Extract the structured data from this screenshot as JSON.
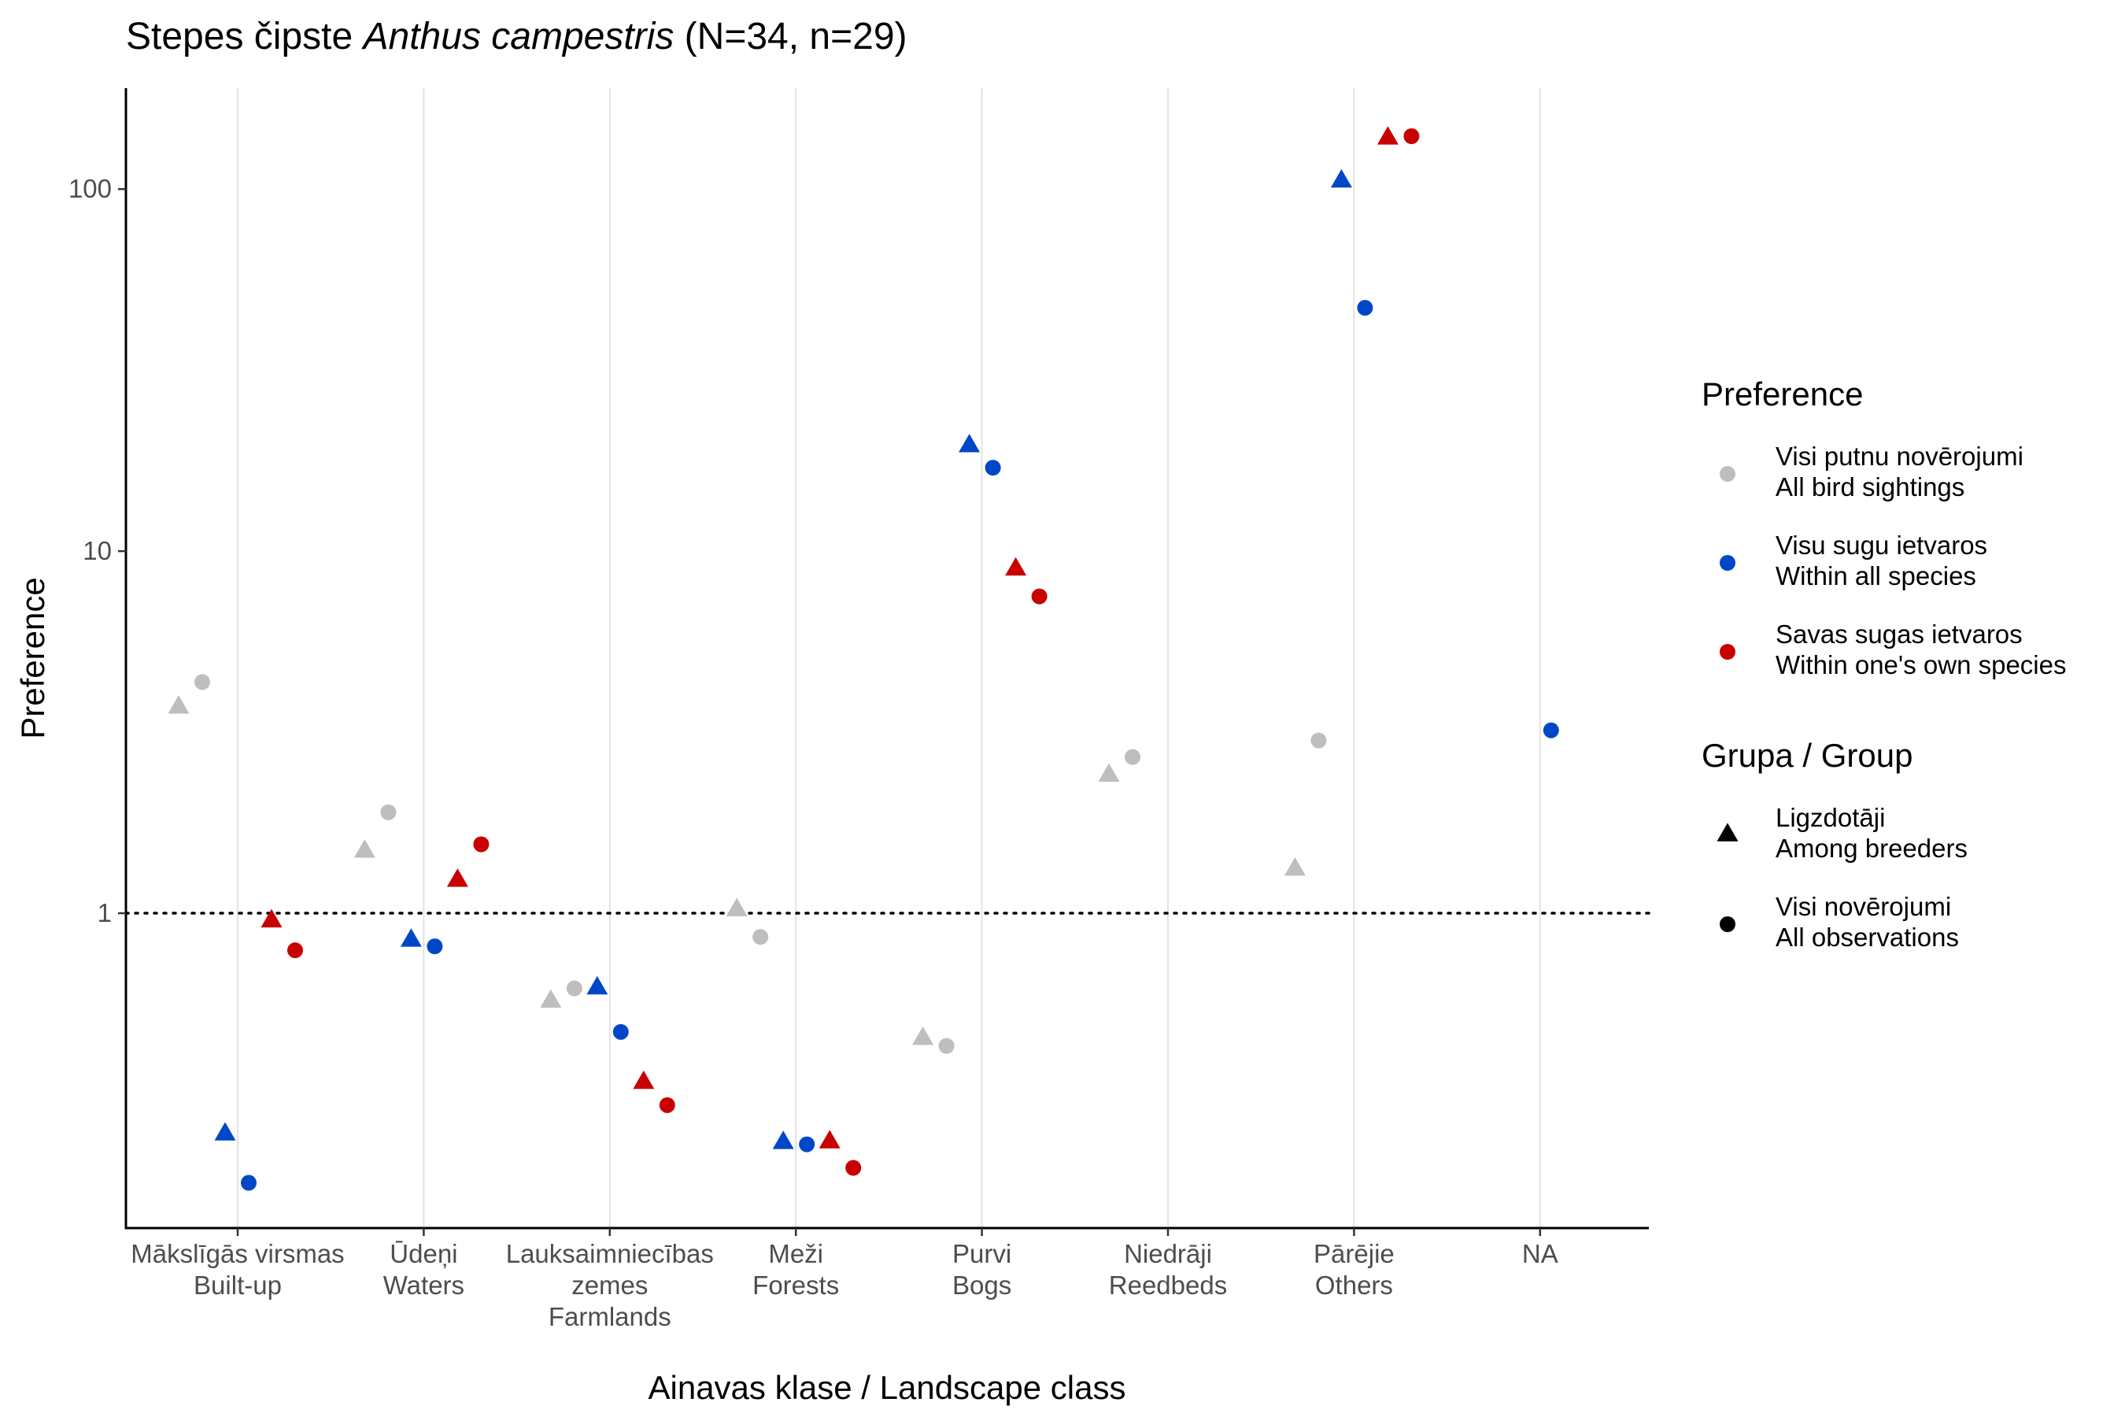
{
  "chart_data": {
    "type": "scatter",
    "title_plain": "Stepes čipste ",
    "title_species": "Anthus campestris",
    "title_counts": " (N=34, n=29)",
    "xlabel": "Ainavas klase / Landscape class",
    "ylabel": "Preference",
    "y_scale": "log10",
    "ylim": [
      0.135,
      190
    ],
    "y_ticks": [
      {
        "value": 1,
        "label": "1"
      },
      {
        "value": 10,
        "label": "10"
      },
      {
        "value": 100,
        "label": "100"
      }
    ],
    "reference_line": {
      "value": 1,
      "style": "dotted"
    },
    "categories": [
      {
        "line1": "Mākslīgās virsmas",
        "line2": "Built-up",
        "line3": ""
      },
      {
        "line1": "Ūdeņi",
        "line2": "Waters",
        "line3": ""
      },
      {
        "line1": "Lauksaimniecības",
        "line2": "zemes",
        "line3": "Farmlands"
      },
      {
        "line1": "Meži",
        "line2": "Forests",
        "line3": ""
      },
      {
        "line1": "Purvi",
        "line2": "Bogs",
        "line3": ""
      },
      {
        "line1": "Niedrāji",
        "line2": "Reedbeds",
        "line3": ""
      },
      {
        "line1": "Pārējie",
        "line2": "Others",
        "line3": ""
      },
      {
        "line1": "NA",
        "line2": "",
        "line3": ""
      }
    ],
    "preference_legend": {
      "title": "Preference",
      "items": [
        {
          "key": "all",
          "line1": "Visi putnu novērojumi",
          "line2": "All bird sightings",
          "color": "#bebebe"
        },
        {
          "key": "within_all",
          "line1": "Visu sugu ietvaros",
          "line2": "Within all species",
          "color": "#0047c8"
        },
        {
          "key": "within_own",
          "line1": "Savas sugas ietvaros",
          "line2": "Within one's own species",
          "color": "#c80000"
        }
      ]
    },
    "group_legend": {
      "title": "Grupa / Group",
      "items": [
        {
          "key": "breeders",
          "shape": "triangle",
          "line1": "Ligzdotāji",
          "line2": "Among breeders"
        },
        {
          "key": "all_obs",
          "shape": "circle",
          "line1": "Visi novērojumi",
          "line2": "All observations"
        }
      ]
    },
    "legend_position": "right",
    "grid": "vertical major lines only",
    "points": [
      {
        "category": 0,
        "pref": "all",
        "group": "breeders",
        "value": 3.7
      },
      {
        "category": 0,
        "pref": "all",
        "group": "all_obs",
        "value": 4.35
      },
      {
        "category": 0,
        "pref": "within_all",
        "group": "breeders",
        "value": 0.245
      },
      {
        "category": 0,
        "pref": "within_all",
        "group": "all_obs",
        "value": 0.18
      },
      {
        "category": 0,
        "pref": "within_own",
        "group": "breeders",
        "value": 0.95
      },
      {
        "category": 0,
        "pref": "within_own",
        "group": "all_obs",
        "value": 0.79
      },
      {
        "category": 1,
        "pref": "all",
        "group": "breeders",
        "value": 1.48
      },
      {
        "category": 1,
        "pref": "all",
        "group": "all_obs",
        "value": 1.9
      },
      {
        "category": 1,
        "pref": "within_all",
        "group": "breeders",
        "value": 0.84
      },
      {
        "category": 1,
        "pref": "within_all",
        "group": "all_obs",
        "value": 0.81
      },
      {
        "category": 1,
        "pref": "within_own",
        "group": "breeders",
        "value": 1.23
      },
      {
        "category": 1,
        "pref": "within_own",
        "group": "all_obs",
        "value": 1.55
      },
      {
        "category": 2,
        "pref": "all",
        "group": "breeders",
        "value": 0.57
      },
      {
        "category": 2,
        "pref": "all",
        "group": "all_obs",
        "value": 0.62
      },
      {
        "category": 2,
        "pref": "within_all",
        "group": "breeders",
        "value": 0.62
      },
      {
        "category": 2,
        "pref": "within_all",
        "group": "all_obs",
        "value": 0.47
      },
      {
        "category": 2,
        "pref": "within_own",
        "group": "breeders",
        "value": 0.34
      },
      {
        "category": 2,
        "pref": "within_own",
        "group": "all_obs",
        "value": 0.295
      },
      {
        "category": 3,
        "pref": "all",
        "group": "breeders",
        "value": 1.02
      },
      {
        "category": 3,
        "pref": "all",
        "group": "all_obs",
        "value": 0.86
      },
      {
        "category": 3,
        "pref": "within_all",
        "group": "breeders",
        "value": 0.232
      },
      {
        "category": 3,
        "pref": "within_all",
        "group": "all_obs",
        "value": 0.23
      },
      {
        "category": 3,
        "pref": "within_own",
        "group": "breeders",
        "value": 0.233
      },
      {
        "category": 3,
        "pref": "within_own",
        "group": "all_obs",
        "value": 0.198
      },
      {
        "category": 4,
        "pref": "all",
        "group": "breeders",
        "value": 0.45
      },
      {
        "category": 4,
        "pref": "all",
        "group": "all_obs",
        "value": 0.43
      },
      {
        "category": 4,
        "pref": "within_all",
        "group": "breeders",
        "value": 19.5
      },
      {
        "category": 4,
        "pref": "within_all",
        "group": "all_obs",
        "value": 17.0
      },
      {
        "category": 4,
        "pref": "within_own",
        "group": "breeders",
        "value": 8.9
      },
      {
        "category": 4,
        "pref": "within_own",
        "group": "all_obs",
        "value": 7.5
      },
      {
        "category": 5,
        "pref": "all",
        "group": "breeders",
        "value": 2.4
      },
      {
        "category": 5,
        "pref": "all",
        "group": "all_obs",
        "value": 2.7
      },
      {
        "category": 6,
        "pref": "all",
        "group": "breeders",
        "value": 1.32
      },
      {
        "category": 6,
        "pref": "all",
        "group": "all_obs",
        "value": 3.0
      },
      {
        "category": 6,
        "pref": "within_all",
        "group": "breeders",
        "value": 105
      },
      {
        "category": 6,
        "pref": "within_all",
        "group": "all_obs",
        "value": 47
      },
      {
        "category": 6,
        "pref": "within_own",
        "group": "breeders",
        "value": 138
      },
      {
        "category": 6,
        "pref": "within_own",
        "group": "all_obs",
        "value": 140
      },
      {
        "category": 7,
        "pref": "within_all",
        "group": "all_obs",
        "value": 3.2
      }
    ]
  }
}
